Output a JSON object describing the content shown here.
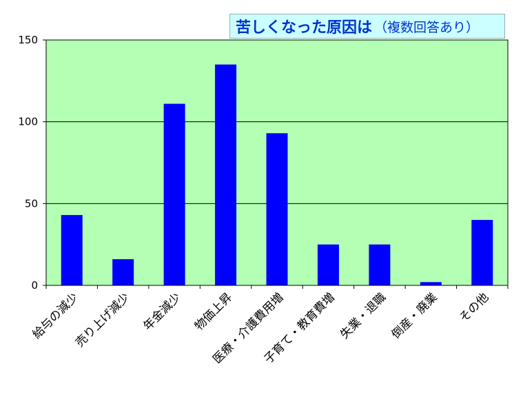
{
  "chart_data": {
    "type": "bar",
    "title": "苦しくなった原因は",
    "subtitle": "（複数回答あり）",
    "categories": [
      "給与の減少",
      "売り上げ減少",
      "年金減少",
      "物価上昇",
      "医療・介護費用増",
      "子育て・教育費増",
      "失業・退職",
      "倒産・廃業",
      "その他"
    ],
    "values": [
      43,
      16,
      111,
      135,
      93,
      25,
      25,
      2,
      40
    ],
    "ylim": [
      0,
      150
    ],
    "yticks": [
      0,
      50,
      100,
      150
    ],
    "xlabel": "",
    "ylabel": "",
    "grid": true,
    "legend": "none",
    "colors": {
      "plot_background": "#b3ffb3",
      "bar": "#0000ff",
      "title_background": "#ccffff",
      "title_text": "#0033cc",
      "gridline": "#000000"
    }
  }
}
